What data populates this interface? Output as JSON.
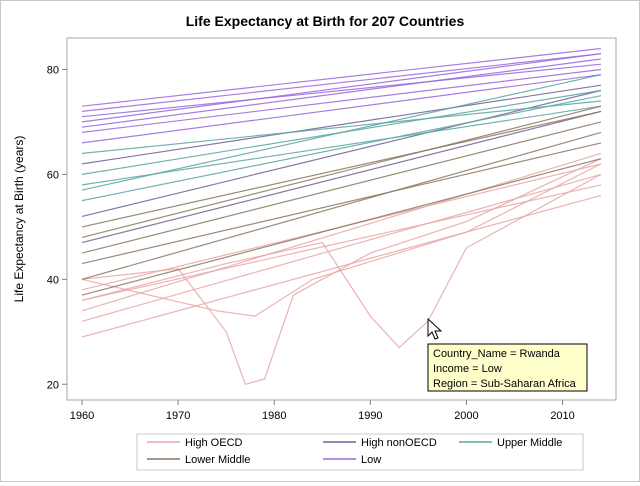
{
  "chart_data": {
    "type": "line",
    "title": "Life Expectancy at Birth for 207 Countries",
    "xlabel": "",
    "ylabel": "Life Expectancy at Birth (years)",
    "xlim": [
      1960,
      2014
    ],
    "ylim": [
      17,
      86
    ],
    "x_ticks": [
      1960,
      1970,
      1980,
      1990,
      2000,
      2010
    ],
    "y_ticks": [
      20,
      40,
      60,
      80
    ],
    "grid": false,
    "legend_position": "bottom",
    "series": [
      {
        "name": "High OECD",
        "color": "#e8a6a6",
        "lines": [
          {
            "x": [
              1960,
              1970,
              1975,
              1977,
              1979,
              1982,
              1990,
              2000,
              2014
            ],
            "y": [
              40,
              42,
              30,
              20,
              21,
              37,
              45,
              51,
              63
            ]
          },
          {
            "x": [
              1960,
              1975,
              1985,
              1990,
              1993,
              1996,
              2000,
              2014
            ],
            "y": [
              36,
              43,
              47,
              33,
              27,
              32,
              46,
              60
            ]
          },
          {
            "x": [
              1960,
              1974,
              1978,
              1984,
              2000,
              2014
            ],
            "y": [
              40,
              34,
              33,
              40,
              49,
              62
            ]
          },
          {
            "x": [
              1960,
              2014
            ],
            "y": [
              29,
              56
            ]
          },
          {
            "x": [
              1960,
              2014
            ],
            "y": [
              32,
              60
            ]
          },
          {
            "x": [
              1960,
              2014
            ],
            "y": [
              34,
              64
            ]
          },
          {
            "x": [
              1960,
              2014
            ],
            "y": [
              36,
              58
            ]
          },
          {
            "x": [
              1960,
              2014
            ],
            "y": [
              38,
              62
            ]
          }
        ]
      },
      {
        "name": "High nonOECD",
        "color": "#6e5f99",
        "lines": [
          {
            "x": [
              1960,
              2014
            ],
            "y": [
              52,
              76
            ]
          },
          {
            "x": [
              1960,
              2014
            ],
            "y": [
              47,
              72
            ]
          },
          {
            "x": [
              1960,
              2014
            ],
            "y": [
              62,
              77
            ]
          }
        ]
      },
      {
        "name": "Upper Middle",
        "color": "#5aa6a0",
        "lines": [
          {
            "x": [
              1960,
              2014
            ],
            "y": [
              55,
              75
            ]
          },
          {
            "x": [
              1960,
              2014
            ],
            "y": [
              60,
              76
            ]
          },
          {
            "x": [
              1960,
              2014
            ],
            "y": [
              57,
              79
            ]
          },
          {
            "x": [
              1960,
              2014
            ],
            "y": [
              64,
              74
            ]
          },
          {
            "x": [
              1960,
              2014
            ],
            "y": [
              58,
              73
            ]
          }
        ]
      },
      {
        "name": "Lower Middle",
        "color": "#8a7560",
        "lines": [
          {
            "x": [
              1960,
              2014
            ],
            "y": [
              40,
              68
            ]
          },
          {
            "x": [
              1960,
              2014
            ],
            "y": [
              45,
              70
            ]
          },
          {
            "x": [
              1960,
              2014
            ],
            "y": [
              48,
              73
            ]
          },
          {
            "x": [
              1960,
              2014
            ],
            "y": [
              37,
              63
            ]
          },
          {
            "x": [
              1960,
              2014
            ],
            "y": [
              50,
              72
            ]
          },
          {
            "x": [
              1960,
              2014
            ],
            "y": [
              43,
              66
            ]
          }
        ]
      },
      {
        "name": "Low",
        "color": "#9966dd",
        "lines": [
          {
            "x": [
              1960,
              2014
            ],
            "y": [
              69,
              82
            ]
          },
          {
            "x": [
              1960,
              2014
            ],
            "y": [
              70,
              83
            ]
          },
          {
            "x": [
              1960,
              2014
            ],
            "y": [
              71,
              81
            ]
          },
          {
            "x": [
              1960,
              2014
            ],
            "y": [
              72,
              83
            ]
          },
          {
            "x": [
              1960,
              2014
            ],
            "y": [
              73,
              84
            ]
          },
          {
            "x": [
              1960,
              2014
            ],
            "y": [
              68,
              80
            ]
          },
          {
            "x": [
              1960,
              2014
            ],
            "y": [
              66,
              79
            ]
          }
        ]
      }
    ]
  },
  "tooltip": {
    "lines": [
      "Country_Name = Rwanda",
      "Income = Low",
      "Region = Sub-Saharan Africa"
    ]
  }
}
